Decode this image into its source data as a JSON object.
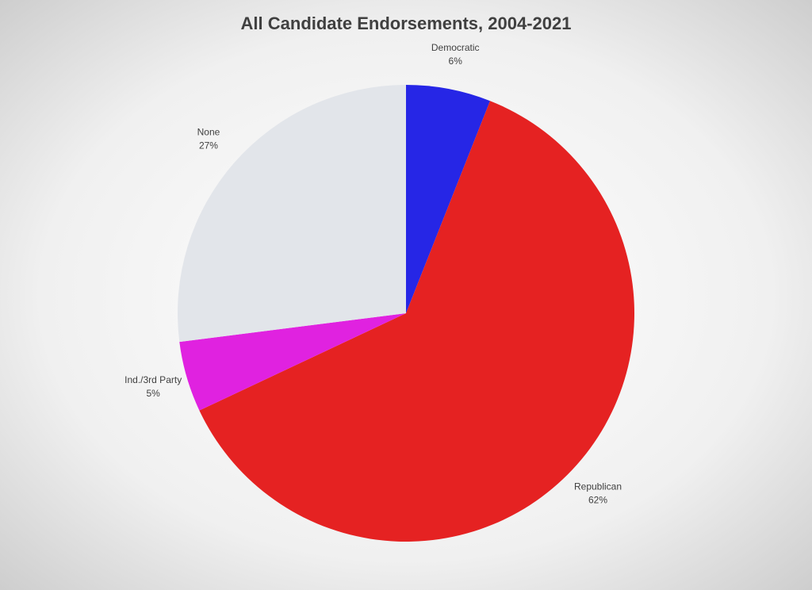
{
  "chart_data": {
    "type": "pie",
    "title": "All Candidate Endorsements, 2004-2021",
    "categories": [
      "Democratic",
      "Republican",
      "Ind./3rd Party",
      "None"
    ],
    "values": [
      6,
      62,
      5,
      27
    ],
    "value_labels": [
      "6%",
      "62%",
      "5%",
      "27%"
    ],
    "colors": [
      "#2626e6",
      "#e52222",
      "#e022e0",
      "#e2e5ea"
    ]
  }
}
